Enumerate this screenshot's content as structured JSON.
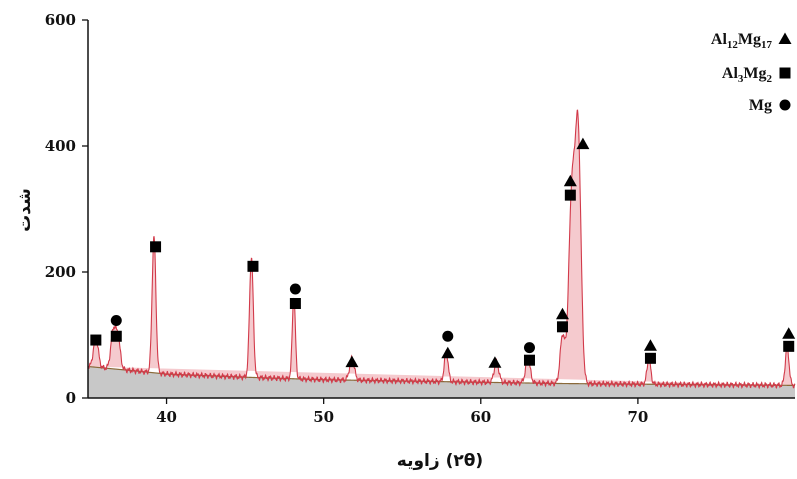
{
  "chart_data": {
    "type": "line",
    "title": "",
    "xlabel": "زاویه (۲θ)",
    "ylabel": "شدت",
    "xlim": [
      35,
      80
    ],
    "ylim": [
      0,
      600
    ],
    "x_ticks": [
      "40",
      "50",
      "60",
      "70"
    ],
    "x_tick_values": [
      40,
      50,
      60,
      70
    ],
    "y_ticks": [
      "0",
      "200",
      "400",
      "600"
    ],
    "y_tick_values": [
      0,
      200,
      400,
      600
    ],
    "grid": false,
    "legend_position": "top-right",
    "colors": {
      "pattern_line": "#d23a4a",
      "pattern_fill": "#f2b8be",
      "background_line": "#8a6a3a",
      "background_fill": "#c8c8c8"
    },
    "legend": [
      {
        "phase": "Al12Mg17",
        "parts": [
          [
            "Al",
            ""
          ],
          [
            "12",
            "sub"
          ],
          [
            "Mg",
            ""
          ],
          [
            "17",
            "sub"
          ]
        ],
        "marker": "triangle"
      },
      {
        "phase": "Al3Mg2",
        "parts": [
          [
            "Al",
            ""
          ],
          [
            "3",
            "sub"
          ],
          [
            "Mg",
            ""
          ],
          [
            "2",
            "sub"
          ]
        ],
        "marker": "square"
      },
      {
        "phase": "Mg",
        "parts": [
          [
            "Mg",
            ""
          ]
        ],
        "marker": "circle"
      }
    ],
    "background_series": {
      "x": [
        35,
        38,
        40,
        45,
        50,
        55,
        60,
        65,
        70,
        75,
        80
      ],
      "y": [
        50,
        43,
        38,
        33,
        29,
        27,
        25,
        23,
        22,
        21,
        20
      ]
    },
    "peaks": [
      {
        "x": 35.5,
        "height": 48,
        "width": 0.15
      },
      {
        "x": 36.6,
        "height": 58,
        "width": 0.15
      },
      {
        "x": 36.9,
        "height": 50,
        "width": 0.15
      },
      {
        "x": 39.2,
        "height": 215,
        "width": 0.12
      },
      {
        "x": 45.4,
        "height": 190,
        "width": 0.12
      },
      {
        "x": 48.1,
        "height": 130,
        "width": 0.1
      },
      {
        "x": 51.8,
        "height": 35,
        "width": 0.15
      },
      {
        "x": 57.8,
        "height": 48,
        "width": 0.12
      },
      {
        "x": 61.0,
        "height": 32,
        "width": 0.15
      },
      {
        "x": 63.0,
        "height": 38,
        "width": 0.15
      },
      {
        "x": 65.2,
        "height": 75,
        "width": 0.15
      },
      {
        "x": 65.8,
        "height": 300,
        "width": 0.2
      },
      {
        "x": 66.2,
        "height": 380,
        "width": 0.18
      },
      {
        "x": 70.7,
        "height": 40,
        "width": 0.12
      },
      {
        "x": 79.5,
        "height": 60,
        "width": 0.12
      }
    ],
    "markers": [
      {
        "x": 35.5,
        "y": 92,
        "shape": "square"
      },
      {
        "x": 36.8,
        "y": 98,
        "shape": "square"
      },
      {
        "x": 36.8,
        "y": 123,
        "shape": "circle"
      },
      {
        "x": 39.3,
        "y": 240,
        "shape": "square"
      },
      {
        "x": 45.5,
        "y": 209,
        "shape": "square"
      },
      {
        "x": 48.2,
        "y": 150,
        "shape": "square"
      },
      {
        "x": 48.2,
        "y": 173,
        "shape": "circle"
      },
      {
        "x": 51.8,
        "y": 57,
        "shape": "triangle"
      },
      {
        "x": 57.9,
        "y": 71,
        "shape": "triangle"
      },
      {
        "x": 57.9,
        "y": 98,
        "shape": "circle"
      },
      {
        "x": 60.9,
        "y": 56,
        "shape": "triangle"
      },
      {
        "x": 63.1,
        "y": 60,
        "shape": "square"
      },
      {
        "x": 63.1,
        "y": 80,
        "shape": "circle"
      },
      {
        "x": 65.2,
        "y": 113,
        "shape": "square"
      },
      {
        "x": 65.2,
        "y": 133,
        "shape": "triangle"
      },
      {
        "x": 65.7,
        "y": 322,
        "shape": "square"
      },
      {
        "x": 65.7,
        "y": 344,
        "shape": "triangle"
      },
      {
        "x": 66.5,
        "y": 403,
        "shape": "triangle"
      },
      {
        "x": 70.8,
        "y": 63,
        "shape": "square"
      },
      {
        "x": 70.8,
        "y": 83,
        "shape": "triangle"
      },
      {
        "x": 79.6,
        "y": 82,
        "shape": "square"
      },
      {
        "x": 79.6,
        "y": 102,
        "shape": "triangle"
      }
    ]
  }
}
